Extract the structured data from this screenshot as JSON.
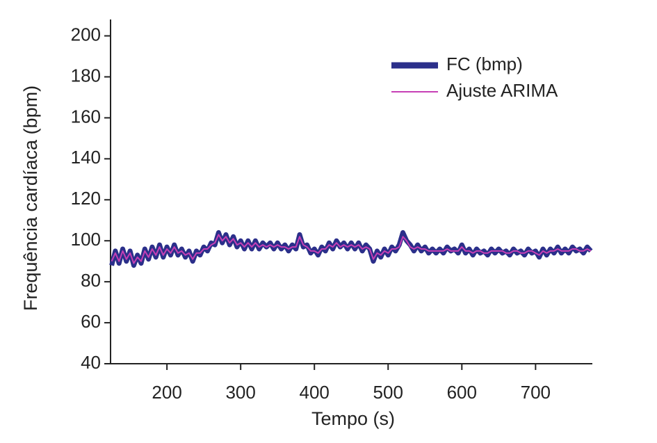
{
  "chart_data": {
    "type": "line",
    "xlabel": "Tempo (s)",
    "ylabel": "Frequência cardíaca (bpm)",
    "x": [
      125,
      130,
      135,
      140,
      145,
      150,
      155,
      160,
      165,
      170,
      175,
      180,
      185,
      190,
      195,
      200,
      205,
      210,
      215,
      220,
      225,
      230,
      235,
      240,
      245,
      250,
      255,
      260,
      265,
      270,
      275,
      280,
      285,
      290,
      295,
      300,
      305,
      310,
      315,
      320,
      325,
      330,
      335,
      340,
      345,
      350,
      355,
      360,
      365,
      370,
      375,
      380,
      385,
      390,
      395,
      400,
      405,
      410,
      415,
      420,
      425,
      430,
      435,
      440,
      445,
      450,
      455,
      460,
      465,
      470,
      475,
      480,
      485,
      490,
      495,
      500,
      505,
      510,
      515,
      520,
      525,
      530,
      535,
      540,
      545,
      550,
      555,
      560,
      565,
      570,
      575,
      580,
      585,
      590,
      595,
      600,
      605,
      610,
      615,
      620,
      625,
      630,
      635,
      640,
      645,
      650,
      655,
      660,
      665,
      670,
      675,
      680,
      685,
      690,
      695,
      700,
      705,
      710,
      715,
      720,
      725,
      730,
      735,
      740,
      745,
      750,
      755,
      760,
      765,
      770,
      775
    ],
    "series": [
      {
        "name": "FC (bmp)",
        "color": "#2b2f8a",
        "values": [
          88,
          95,
          89,
          96,
          90,
          95,
          88,
          93,
          89,
          96,
          91,
          97,
          92,
          98,
          92,
          97,
          93,
          98,
          93,
          96,
          92,
          95,
          90,
          95,
          93,
          97,
          95,
          99,
          98,
          104,
          99,
          103,
          98,
          102,
          97,
          100,
          96,
          100,
          96,
          100,
          96,
          99,
          97,
          99,
          96,
          99,
          96,
          98,
          95,
          98,
          96,
          103,
          97,
          98,
          94,
          96,
          93,
          97,
          95,
          99,
          96,
          100,
          97,
          99,
          96,
          99,
          96,
          99,
          95,
          98,
          96,
          90,
          95,
          92,
          96,
          93,
          97,
          95,
          98,
          104,
          100,
          98,
          95,
          98,
          95,
          97,
          94,
          96,
          94,
          96,
          94,
          97,
          95,
          96,
          94,
          98,
          94,
          96,
          93,
          96,
          94,
          95,
          93,
          96,
          94,
          96,
          94,
          95,
          93,
          96,
          94,
          95,
          93,
          96,
          94,
          95,
          92,
          96,
          93,
          96,
          94,
          97,
          94,
          96,
          94,
          97,
          95,
          96,
          94,
          97,
          95
        ]
      },
      {
        "name": "Ajuste ARIMA",
        "color": "#c63fb5",
        "values": [
          90,
          94,
          90,
          95,
          91,
          94,
          89,
          92,
          90,
          95,
          92,
          96,
          93,
          97,
          93,
          96,
          94,
          97,
          94,
          95,
          93,
          94,
          91,
          94,
          94,
          96,
          96,
          98,
          99,
          103,
          100,
          102,
          99,
          101,
          98,
          99,
          97,
          99,
          97,
          99,
          97,
          98,
          97,
          98,
          97,
          98,
          97,
          97,
          96,
          97,
          97,
          102,
          98,
          97,
          95,
          95,
          94,
          96,
          96,
          98,
          97,
          99,
          97,
          98,
          97,
          98,
          97,
          98,
          96,
          97,
          96,
          91,
          94,
          93,
          95,
          94,
          96,
          96,
          97,
          102,
          100,
          97,
          96,
          97,
          96,
          96,
          95,
          95,
          95,
          95,
          95,
          96,
          95,
          95,
          95,
          97,
          95,
          95,
          94,
          95,
          95,
          94,
          94,
          95,
          95,
          95,
          95,
          94,
          94,
          95,
          95,
          94,
          94,
          95,
          95,
          94,
          93,
          95,
          94,
          95,
          95,
          96,
          95,
          95,
          95,
          96,
          96,
          95,
          95,
          96,
          95
        ]
      }
    ],
    "xlim": [
      123.5,
      777
    ],
    "ylim": [
      40,
      208
    ],
    "xticks": [
      200,
      300,
      400,
      500,
      600,
      700
    ],
    "yticks": [
      40,
      60,
      80,
      100,
      120,
      140,
      160,
      180,
      200
    ],
    "legend": "upper right"
  }
}
